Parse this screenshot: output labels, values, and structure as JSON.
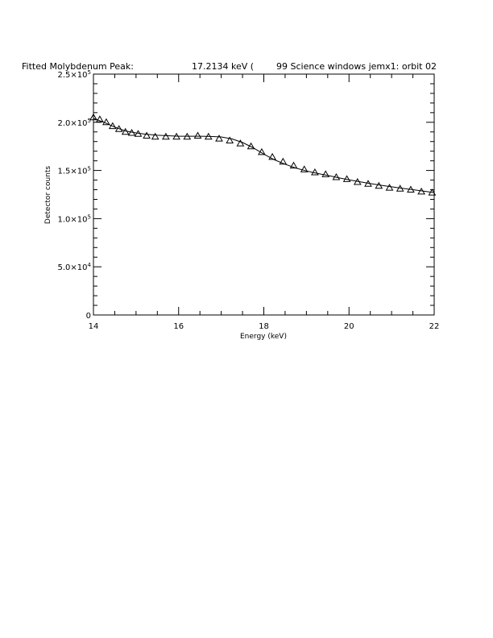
{
  "chart_data": {
    "type": "scatter",
    "title_parts": [
      "Fitted Molybdenum Peak:",
      "17.2134 keV (",
      "99 Science windows jemx1: orbit 02"
    ],
    "xlabel": "Energy (keV)",
    "ylabel": "Detector counts",
    "xlim": [
      14,
      22
    ],
    "ylim": [
      0,
      250000
    ],
    "grid": false,
    "x_ticks": [
      {
        "value": 14,
        "label": "14"
      },
      {
        "value": 16,
        "label": "16"
      },
      {
        "value": 18,
        "label": "18"
      },
      {
        "value": 20,
        "label": "20"
      },
      {
        "value": 22,
        "label": "22"
      }
    ],
    "y_ticks": [
      {
        "value": 0,
        "mant": "0",
        "exp": ""
      },
      {
        "value": 50000,
        "mant": "5.0×10",
        "exp": "4"
      },
      {
        "value": 100000,
        "mant": "1.0×10",
        "exp": "5"
      },
      {
        "value": 150000,
        "mant": "1.5×10",
        "exp": "5"
      },
      {
        "value": 200000,
        "mant": "2.0×10",
        "exp": "5"
      },
      {
        "value": 250000,
        "mant": "2.5×10",
        "exp": "5"
      }
    ],
    "series": [
      {
        "kind": "data-points",
        "marker": "triangle",
        "x": [
          14.0,
          14.15,
          14.3,
          14.45,
          14.6,
          14.75,
          14.9,
          15.05,
          15.25,
          15.45,
          15.7,
          15.95,
          16.2,
          16.45,
          16.7,
          16.95,
          17.2,
          17.45,
          17.7,
          17.95,
          18.2,
          18.45,
          18.7,
          18.95,
          19.2,
          19.45,
          19.7,
          19.95,
          20.2,
          20.45,
          20.7,
          20.95,
          21.2,
          21.45,
          21.7,
          21.95
        ],
        "y": [
          205000,
          203000,
          200000,
          196000,
          193000,
          190000,
          189000,
          188000,
          186000,
          185000,
          185000,
          185000,
          185000,
          186000,
          185000,
          183000,
          181000,
          178000,
          175000,
          169000,
          164000,
          159000,
          155000,
          151000,
          148000,
          146000,
          143000,
          141000,
          138000,
          136000,
          134000,
          132000,
          131000,
          130000,
          128000,
          127000
        ]
      },
      {
        "kind": "fit-line",
        "x": [
          14.0,
          14.25,
          14.5,
          14.75,
          15.0,
          15.25,
          15.5,
          15.75,
          16.0,
          16.25,
          16.5,
          16.75,
          17.0,
          17.25,
          17.5,
          17.75,
          18.0,
          18.25,
          18.5,
          18.75,
          19.0,
          19.25,
          19.5,
          19.75,
          20.0,
          20.25,
          20.5,
          20.75,
          21.0,
          21.25,
          21.5,
          21.75,
          22.0
        ],
        "y": [
          204000,
          200000,
          195000,
          191000,
          189000,
          187500,
          186500,
          186000,
          185500,
          185500,
          185500,
          185300,
          184800,
          182800,
          179000,
          173500,
          167000,
          161000,
          156500,
          152500,
          149500,
          147000,
          144800,
          142500,
          140300,
          138300,
          136400,
          134600,
          133000,
          131400,
          130000,
          128500,
          127000
        ]
      }
    ]
  }
}
